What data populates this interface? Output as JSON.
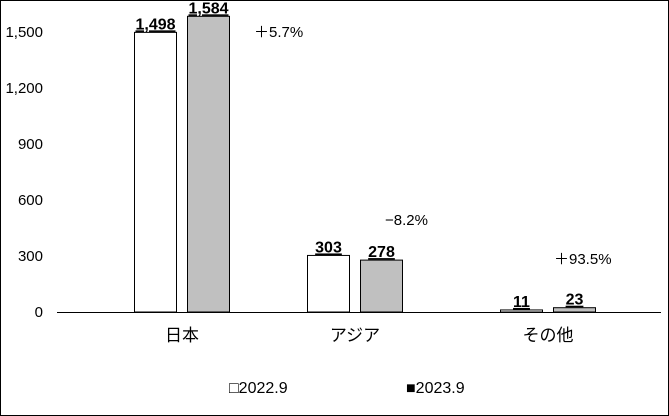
{
  "chart_data": {
    "type": "bar",
    "categories": [
      "日本",
      "アジア",
      "その他"
    ],
    "series": [
      {
        "name": "2022.9",
        "values": [
          1498,
          303,
          11
        ],
        "value_labels": [
          "1,498",
          "303",
          "11"
        ],
        "color": "#ffffff"
      },
      {
        "name": "2023.9",
        "values": [
          1584,
          278,
          23
        ],
        "value_labels": [
          "1,584",
          "278",
          "23"
        ],
        "color": "#c0c0c0"
      }
    ],
    "changes": [
      "＋5.7%",
      "−8.2%",
      "＋93.5%"
    ],
    "ylim": [
      0,
      1650
    ],
    "yticks": [
      0,
      300,
      600,
      900,
      1200,
      1500
    ],
    "ytick_labels": [
      "0",
      "300",
      "600",
      "900",
      "1,200",
      "1,500"
    ],
    "grid": false,
    "legend_position": "bottom",
    "legend_markers": [
      "□",
      "■"
    ]
  }
}
